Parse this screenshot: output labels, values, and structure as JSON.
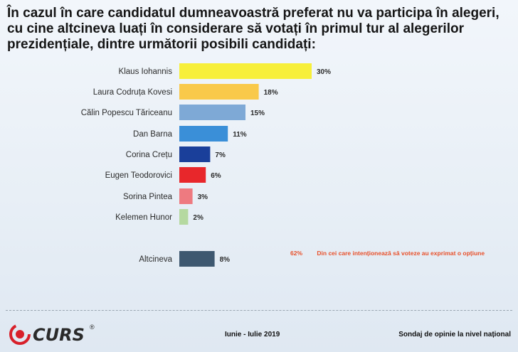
{
  "chart_data": {
    "type": "bar",
    "orientation": "horizontal",
    "title": "În cazul în care candidatul dumneavoastră preferat nu va participa în alegeri, cu cine altcineva luați în considerare să votați în primul tur al alegerilor prezidențiale, dintre următorii posibili candidați:",
    "categories": [
      "Klaus Iohannis",
      "Laura Codruța Kovesi",
      "Călin Popescu Tăriceanu",
      "Dan Barna",
      "Corina Crețu",
      "Eugen Teodorovici",
      "Sorina Pintea",
      "Kelemen Hunor",
      "Altcineva"
    ],
    "values": [
      30,
      18,
      15,
      11,
      7,
      6,
      3,
      2,
      8
    ],
    "value_suffix": "%",
    "bar_colors": [
      "#f7ef3a",
      "#f9c94a",
      "#7ea9d6",
      "#3a8fd8",
      "#1a3f9a",
      "#e8272b",
      "#ee7a80",
      "#b5d9a0",
      "#3e5870"
    ],
    "xlim": [
      0,
      30
    ],
    "grid": false,
    "legend": "none"
  },
  "note": {
    "percent": "62%",
    "text": "Din cei care intenționează să voteze au exprimat o opțiune"
  },
  "footer": {
    "logo": "CURS",
    "logo_mark": "®",
    "period": "Iunie - Iulie 2019",
    "source": "Sondaj de opinie la nivel național"
  },
  "colors": {
    "brand_red": "#d8202a",
    "note_orange": "#e8502a"
  }
}
